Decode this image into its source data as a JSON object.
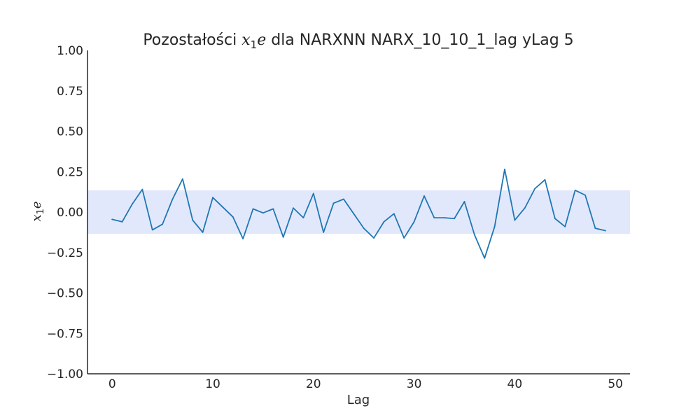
{
  "chart_data": {
    "type": "line",
    "title": {
      "prefix": "Pozostałości ",
      "math_base": "x",
      "math_sub": "1",
      "math_tail": "e",
      "suffix": " dla NARXNN NARX_10_10_1_lag yLag 5"
    },
    "xlabel": "Lag",
    "ylabel": {
      "base": "x",
      "sub": "1",
      "tail": "e"
    },
    "xlim": [
      -2.45,
      51.45
    ],
    "ylim": [
      -1.0,
      1.0
    ],
    "xticks": [
      0,
      10,
      20,
      30,
      40,
      50
    ],
    "yticks": [
      -1.0,
      -0.75,
      -0.5,
      -0.25,
      0.0,
      0.25,
      0.5,
      0.75,
      1.0
    ],
    "ytick_labels": [
      "−1.00",
      "−0.75",
      "−0.50",
      "−0.25",
      "0.00",
      "0.25",
      "0.50",
      "0.75",
      "1.00"
    ],
    "grid": false,
    "confidence_band": {
      "lower": -0.135,
      "upper": 0.135,
      "color": "#e2e8fb"
    },
    "series": [
      {
        "color": "#1f77b4",
        "x": [
          0,
          1,
          2,
          3,
          4,
          5,
          6,
          7,
          8,
          9,
          10,
          11,
          12,
          13,
          14,
          15,
          16,
          17,
          18,
          19,
          20,
          21,
          22,
          23,
          24,
          25,
          26,
          27,
          28,
          29,
          30,
          31,
          32,
          33,
          34,
          35,
          36,
          37,
          38,
          39,
          40,
          41,
          42,
          43,
          44,
          45,
          46,
          47,
          48,
          49
        ],
        "y": [
          -0.045,
          -0.06,
          0.05,
          0.14,
          -0.11,
          -0.075,
          0.08,
          0.205,
          -0.05,
          -0.125,
          0.09,
          0.03,
          -0.03,
          -0.165,
          0.02,
          -0.005,
          0.02,
          -0.155,
          0.025,
          -0.035,
          0.115,
          -0.125,
          0.055,
          0.08,
          -0.01,
          -0.1,
          -0.16,
          -0.06,
          -0.01,
          -0.16,
          -0.06,
          0.1,
          -0.035,
          -0.035,
          -0.04,
          0.065,
          -0.14,
          -0.285,
          -0.09,
          0.265,
          -0.05,
          0.025,
          0.145,
          0.2,
          -0.04,
          -0.09,
          0.135,
          0.105,
          -0.1,
          -0.115
        ]
      }
    ]
  }
}
